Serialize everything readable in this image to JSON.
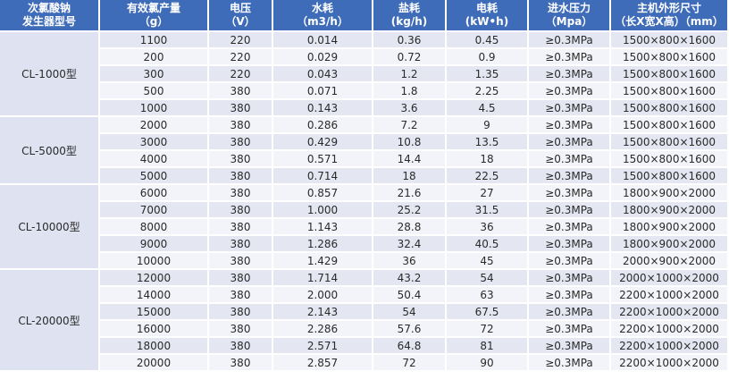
{
  "headers": [
    [
      "次氯酸钠",
      "发生器型号"
    ],
    [
      "有效氯产量",
      "（g）"
    ],
    [
      "电压",
      "（V）"
    ],
    [
      "水耗",
      "（m3/h）"
    ],
    [
      "盐耗",
      "(kg/h)"
    ],
    [
      "电耗",
      "(kW•h)"
    ],
    [
      "进水压力",
      "（Mpa）"
    ],
    [
      "主机外形尺寸",
      "（长X宽X高）（mm）"
    ]
  ],
  "groups": [
    {
      "model": "CL-1000型",
      "rows": [
        [
          "1100",
          "220",
          "0.014",
          "0.36",
          "0.45",
          "≥0.3MPa",
          "1500×800×1600"
        ],
        [
          "200",
          "220",
          "0.029",
          "0.72",
          "0.9",
          "≥0.3MPa",
          "1500×800×1600"
        ],
        [
          "300",
          "220",
          "0.043",
          "1.2",
          "1.35",
          "≥0.3MPa",
          "1500×800×1600"
        ],
        [
          "500",
          "380",
          "0.071",
          "1.8",
          "2.25",
          "≥0.3MPa",
          "1500×800×1600"
        ],
        [
          "1000",
          "380",
          "0.143",
          "3.6",
          "4.5",
          "≥0.3MPa",
          "1500×800×1600"
        ]
      ]
    },
    {
      "model": "CL-5000型",
      "rows": [
        [
          "2000",
          "380",
          "0.286",
          "7.2",
          "9",
          "≥0.3MPa",
          "1500×800×1600"
        ],
        [
          "3000",
          "380",
          "0.429",
          "10.8",
          "13.5",
          "≥0.3MPa",
          "1500×800×1600"
        ],
        [
          "4000",
          "380",
          "0.571",
          "14.4",
          "18",
          "≥0.3MPa",
          "1500×800×1600"
        ],
        [
          "5000",
          "380",
          "0.714",
          "18",
          "22.5",
          "≥0.3MPa",
          "1500×800×1600"
        ]
      ]
    },
    {
      "model": "CL-10000型",
      "rows": [
        [
          "6000",
          "380",
          "0.857",
          "21.6",
          "27",
          "≥0.3MPa",
          "1800×900×2000"
        ],
        [
          "7000",
          "380",
          "1.000",
          "25.2",
          "31.5",
          "≥0.3MPa",
          "1800×900×2000"
        ],
        [
          "8000",
          "380",
          "1.143",
          "28.8",
          "36",
          "≥0.3MPa",
          "1800×900×2000"
        ],
        [
          "9000",
          "380",
          "1.286",
          "32.4",
          "40.5",
          "≥0.3MPa",
          "1800×900×2000"
        ],
        [
          "10000",
          "380",
          "1.429",
          "36",
          "45",
          "≥0.3MPa",
          "2000×900×2000"
        ]
      ]
    },
    {
      "model": "CL-20000型",
      "rows": [
        [
          "12000",
          "380",
          "1.714",
          "43.2",
          "54",
          "≥0.3MPa",
          "2000×1000×2000"
        ],
        [
          "14000",
          "380",
          "2.000",
          "50.4",
          "63",
          "≥0.3MPa",
          "2200×1000×2000"
        ],
        [
          "15000",
          "380",
          "2.143",
          "54",
          "67.5",
          "≥0.3MPa",
          "2200×1000×2000"
        ],
        [
          "16000",
          "380",
          "2.286",
          "57.6",
          "72",
          "≥0.3MPa",
          "2200×1000×2000"
        ],
        [
          "18000",
          "380",
          "2.571",
          "64.8",
          "81",
          "≥0.3MPa",
          "2200×1000×2000"
        ],
        [
          "20000",
          "380",
          "2.857",
          "72",
          "90",
          "≥0.3MPa",
          "2200×1000×2000"
        ]
      ]
    }
  ]
}
